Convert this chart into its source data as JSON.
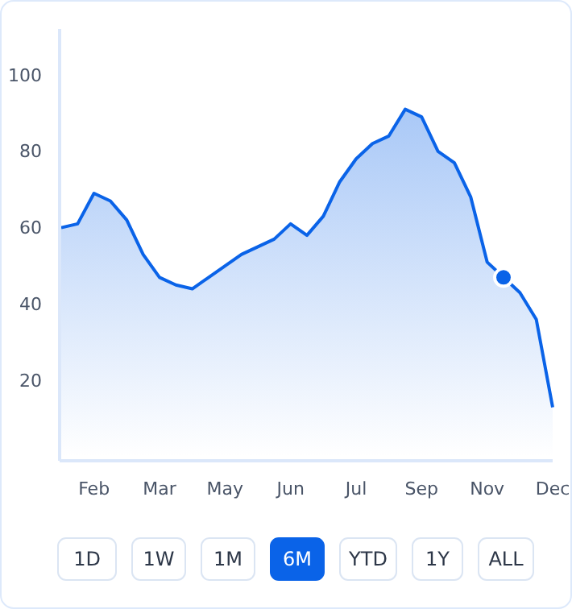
{
  "chart_data": {
    "type": "area",
    "categories": [
      null,
      null,
      "Feb",
      null,
      null,
      null,
      "Mar",
      null,
      null,
      null,
      "May",
      null,
      null,
      null,
      "Jun",
      null,
      null,
      null,
      "Jul",
      null,
      null,
      null,
      "Sep",
      null,
      null,
      null,
      "Nov",
      null,
      null,
      null,
      "Dec"
    ],
    "series": [
      {
        "type": "area",
        "color": "#0a63e8",
        "values": [
          60,
          61,
          69,
          67,
          62,
          53,
          47,
          45,
          44,
          47,
          50,
          53,
          55,
          57,
          61,
          58,
          63,
          72,
          78,
          82,
          84,
          91,
          89,
          80,
          77,
          68,
          51,
          47,
          43,
          36,
          13
        ]
      },
      {
        "type": "scatter",
        "color": "#0a63e8",
        "values": [
          null,
          null,
          null,
          null,
          null,
          null,
          null,
          null,
          null,
          null,
          null,
          null,
          null,
          null,
          null,
          null,
          null,
          null,
          null,
          null,
          null,
          null,
          null,
          null,
          null,
          null,
          null,
          47,
          null,
          null,
          null
        ],
        "marker": "circle"
      }
    ],
    "ylim": [
      -1,
      112
    ],
    "yticks": [
      20,
      40,
      60,
      80,
      100
    ],
    "annotations": [
      "1D",
      "1W",
      "1M",
      "6M",
      "YTD",
      "1Y",
      "ALL"
    ]
  }
}
